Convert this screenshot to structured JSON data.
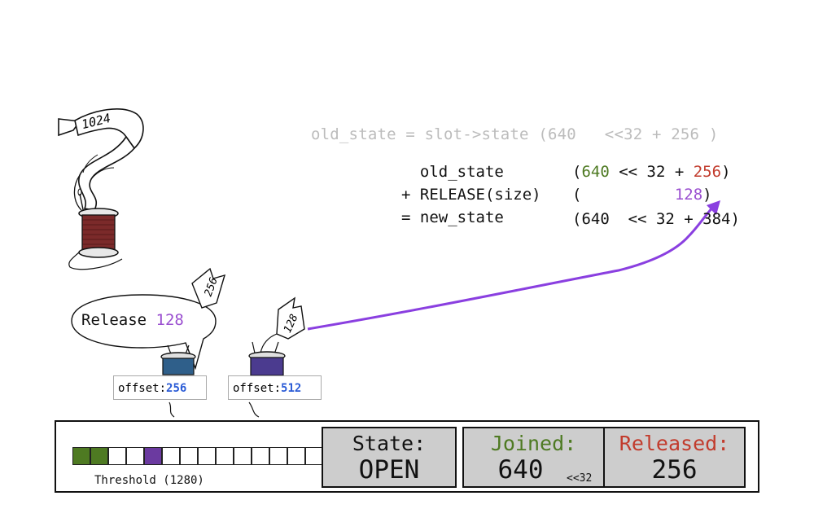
{
  "old_state_line": {
    "text": "old_state = slot->state (640   <<32 + 256 )"
  },
  "equation": {
    "row1": {
      "left": "  old_state",
      "open": "(",
      "joined": "640",
      "shift": " << 32 + ",
      "released": "256",
      "close": ")"
    },
    "row2": {
      "left": "+ RELEASE(size)",
      "open": "(",
      "pad": "          ",
      "delta": "128",
      "close": ")"
    },
    "row3": {
      "left": "= new_state",
      "right": "(640  << 32 + 384)"
    }
  },
  "bubble": {
    "prefix": "Release ",
    "amount": "128"
  },
  "tags": {
    "big_spool": "1024",
    "mid_spool": "256",
    "small_spool": "128"
  },
  "offsets": [
    {
      "label": "offset:",
      "value": "256"
    },
    {
      "label": "offset:",
      "value": "512"
    }
  ],
  "buffer": {
    "cells": [
      "green",
      "green",
      "empty",
      "empty",
      "purple",
      "empty",
      "empty",
      "empty",
      "empty",
      "empty",
      "empty",
      "empty",
      "empty",
      "empty"
    ],
    "threshold_label": "Threshold (1280)"
  },
  "panels": {
    "state": {
      "label": "State:",
      "value": "OPEN"
    },
    "joined": {
      "label": "Joined:",
      "value": "640",
      "note": "<<32"
    },
    "released": {
      "label": "Released:",
      "value": "256"
    }
  },
  "colors": {
    "joined": "#4e7a22",
    "released": "#c23b2c",
    "release_amount": "#9a4fd0",
    "offset_value": "#2a5bd6",
    "arrow": "#8a3fe0",
    "panel_bg": "#cdcdcd",
    "muted_text": "#bcbcbc"
  }
}
